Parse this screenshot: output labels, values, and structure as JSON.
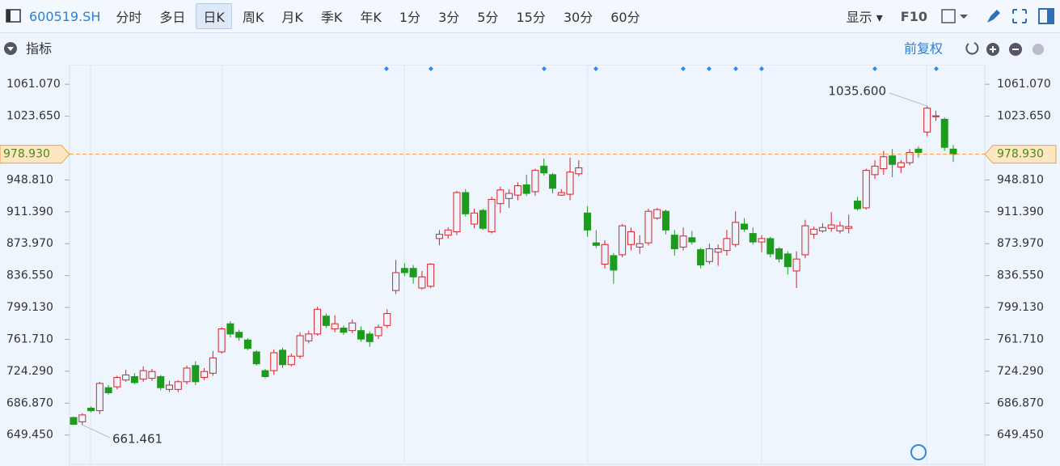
{
  "toolbar": {
    "symbol": "600519.SH",
    "periods": [
      "分时",
      "多日",
      "日K",
      "周K",
      "月K",
      "季K",
      "年K",
      "1分",
      "3分",
      "5分",
      "15分",
      "30分",
      "60分"
    ],
    "selected": 2,
    "display": "显示",
    "f10": "F10"
  },
  "panel": {
    "indicator": "指标",
    "adjust": "前复权"
  },
  "chart_data": {
    "type": "candlestick",
    "open": [
      670,
      665,
      681,
      678,
      705,
      706,
      714,
      718,
      715,
      716,
      718,
      703,
      703,
      712,
      731,
      717,
      722,
      747,
      780,
      770,
      761,
      747,
      725,
      725,
      749,
      732,
      742,
      760,
      768,
      789,
      774,
      775,
      772,
      772,
      768,
      766,
      778,
      819,
      845,
      845,
      822,
      824,
      880,
      884,
      888,
      934,
      897,
      913,
      888,
      921,
      927,
      931,
      943,
      935,
      965,
      955,
      931,
      932,
      956,
      910,
      875,
      850,
      860,
      861,
      873,
      870,
      875,
      904,
      912,
      884,
      870,
      881,
      867,
      853,
      864,
      866,
      873,
      897,
      886,
      876,
      880,
      868,
      862,
      842,
      861,
      885,
      889,
      892,
      889,
      892,
      924,
      916,
      955,
      962,
      977,
      964,
      969,
      985,
      1005,
      1023,
      1020,
      985
    ],
    "high": [
      671,
      675,
      683,
      712,
      708,
      719,
      726,
      722,
      730,
      727,
      720,
      713,
      714,
      731,
      736,
      728,
      748,
      776,
      783,
      773,
      763,
      749,
      727,
      750,
      752,
      745,
      770,
      772,
      800,
      792,
      790,
      778,
      785,
      777,
      771,
      779,
      797,
      855,
      851,
      849,
      842,
      851,
      890,
      893,
      936,
      938,
      915,
      915,
      929,
      941,
      938,
      946,
      955,
      962,
      974,
      957,
      938,
      975,
      972,
      918,
      890,
      878,
      863,
      897,
      893,
      884,
      915,
      916,
      914,
      890,
      893,
      889,
      869,
      874,
      873,
      890,
      912,
      904,
      893,
      884,
      882,
      870,
      865,
      865,
      902,
      894,
      898,
      911,
      900,
      908,
      929,
      962,
      972,
      983,
      985,
      972,
      985,
      988,
      1035.6,
      1030,
      1022,
      990
    ],
    "low": [
      661.461,
      661,
      676,
      674,
      697,
      703,
      712,
      709,
      712,
      713,
      702,
      700,
      700,
      709,
      708,
      714,
      719,
      745,
      764,
      760,
      749,
      731,
      716,
      720,
      728,
      730,
      739,
      757,
      766,
      775,
      770,
      767,
      769,
      759,
      753,
      762,
      775,
      815,
      836,
      827,
      820,
      822,
      872,
      880,
      884,
      906,
      892,
      890,
      886,
      910,
      916,
      925,
      930,
      930,
      954,
      933,
      930,
      925,
      953,
      882,
      869,
      845,
      827,
      858,
      866,
      862,
      872,
      902,
      885,
      860,
      866,
      873,
      845,
      850,
      848,
      860,
      870,
      888,
      873,
      864,
      858,
      852,
      838,
      822,
      857,
      880,
      887,
      888,
      886,
      886,
      913,
      914,
      950,
      955,
      952,
      957,
      966,
      975,
      1000,
      1018,
      983,
      970
    ],
    "close": [
      662,
      673,
      678,
      710,
      699,
      717,
      720,
      711,
      725,
      724,
      705,
      708,
      712,
      728,
      712,
      724,
      740,
      774,
      768,
      764,
      751,
      733,
      718,
      746,
      732,
      742,
      766,
      768,
      797,
      778,
      780,
      770,
      781,
      762,
      759,
      776,
      792,
      840,
      840,
      835,
      835,
      850,
      885,
      890,
      934,
      909,
      910,
      892,
      926,
      937,
      933,
      942,
      933,
      960,
      957,
      939,
      934,
      958,
      963,
      890,
      872,
      873,
      843,
      895,
      888,
      874,
      912,
      914,
      890,
      868,
      883,
      876,
      849,
      868,
      868,
      880,
      899,
      891,
      876,
      880,
      862,
      856,
      847,
      856,
      895,
      891,
      893,
      896,
      895,
      894,
      915,
      960,
      965,
      976,
      967,
      969,
      981,
      981,
      1033,
      1024,
      987,
      978.93
    ],
    "up_color": "#d5222c",
    "down_color": "#1e9b1e",
    "ylim": [
      615,
      1084
    ],
    "yticks": [
      {
        "value": 649.45,
        "label": "649.450"
      },
      {
        "value": 686.87,
        "label": "686.870"
      },
      {
        "value": 724.29,
        "label": "724.290"
      },
      {
        "value": 761.71,
        "label": "761.710"
      },
      {
        "value": 799.13,
        "label": "799.130"
      },
      {
        "value": 836.55,
        "label": "836.550"
      },
      {
        "value": 873.97,
        "label": "873.970"
      },
      {
        "value": 911.39,
        "label": "911.390"
      },
      {
        "value": 948.81,
        "label": "948.810"
      },
      {
        "value": 1023.65,
        "label": "1023.650"
      },
      {
        "value": 1061.07,
        "label": "1061.070"
      }
    ],
    "current_price": {
      "value": 978.93,
      "label": "978.930"
    },
    "high_label": {
      "value": 1035.6,
      "label": "1035.600"
    },
    "low_label": {
      "value": 661.461,
      "label": "661.461"
    }
  }
}
